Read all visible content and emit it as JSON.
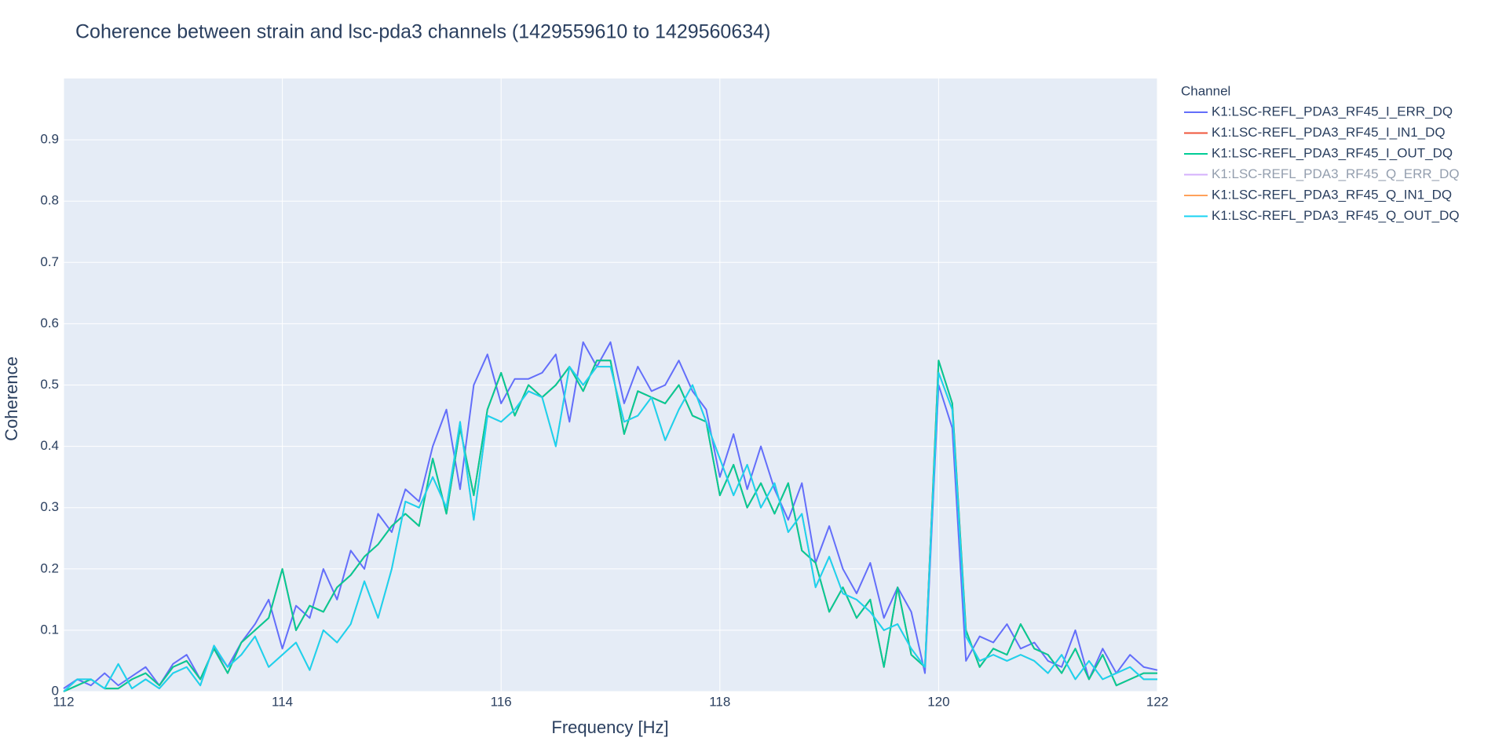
{
  "chart_data": {
    "type": "line",
    "title": "Coherence between strain and lsc-pda3 channels (1429559610 to 1429560634)",
    "x_label": "Frequency [Hz]",
    "y_label": "Coherence",
    "legend_title": "Channel",
    "legend_position": "outside-right",
    "grid": true,
    "background": "#e5ecf6",
    "xlim": [
      112,
      122
    ],
    "xticks": [
      112,
      114,
      116,
      118,
      120,
      122
    ],
    "ylim": [
      0,
      1
    ],
    "yticks": [
      0,
      0.1,
      0.2,
      0.3,
      0.4,
      0.5,
      0.6,
      0.7,
      0.8,
      0.9
    ],
    "x": [
      112,
      112.125,
      112.25,
      112.375,
      112.5,
      112.625,
      112.75,
      112.875,
      113,
      113.125,
      113.25,
      113.375,
      113.5,
      113.625,
      113.75,
      113.875,
      114,
      114.125,
      114.25,
      114.375,
      114.5,
      114.625,
      114.75,
      114.875,
      115,
      115.125,
      115.25,
      115.375,
      115.5,
      115.625,
      115.75,
      115.875,
      116,
      116.125,
      116.25,
      116.375,
      116.5,
      116.625,
      116.75,
      116.875,
      117,
      117.125,
      117.25,
      117.375,
      117.5,
      117.625,
      117.75,
      117.875,
      118,
      118.125,
      118.25,
      118.375,
      118.5,
      118.625,
      118.75,
      118.875,
      119,
      119.125,
      119.25,
      119.375,
      119.5,
      119.625,
      119.75,
      119.875,
      120,
      120.125,
      120.25,
      120.375,
      120.5,
      120.625,
      120.75,
      120.875,
      121,
      121.125,
      121.25,
      121.375,
      121.5,
      121.625,
      121.75,
      121.875,
      122
    ],
    "series": [
      {
        "name": "K1:LSC-REFL_PDA3_RF45_I_ERR_DQ",
        "color": "#636efa",
        "visible": true,
        "values": [
          0.005,
          0.02,
          0.01,
          0.03,
          0.01,
          0.025,
          0.04,
          0.01,
          0.045,
          0.06,
          0.02,
          0.07,
          0.04,
          0.08,
          0.11,
          0.15,
          0.07,
          0.14,
          0.12,
          0.2,
          0.15,
          0.23,
          0.2,
          0.29,
          0.26,
          0.33,
          0.31,
          0.4,
          0.46,
          0.33,
          0.5,
          0.55,
          0.47,
          0.51,
          0.51,
          0.52,
          0.55,
          0.44,
          0.57,
          0.53,
          0.57,
          0.47,
          0.53,
          0.49,
          0.5,
          0.54,
          0.49,
          0.46,
          0.35,
          0.42,
          0.33,
          0.4,
          0.33,
          0.28,
          0.34,
          0.21,
          0.27,
          0.2,
          0.16,
          0.21,
          0.12,
          0.17,
          0.13,
          0.03,
          0.5,
          0.43,
          0.05,
          0.09,
          0.08,
          0.11,
          0.07,
          0.08,
          0.05,
          0.04,
          0.1,
          0.02,
          0.07,
          0.03,
          0.06,
          0.04,
          0.035
        ]
      },
      {
        "name": "K1:LSC-REFL_PDA3_RF45_I_IN1_DQ",
        "color": "#ef553b",
        "visible": true,
        "values": [
          0,
          0.01,
          0.02,
          0.005,
          0.005,
          0.02,
          0.03,
          0.01,
          0.04,
          0.05,
          0.02,
          0.07,
          0.03,
          0.08,
          0.1,
          0.12,
          0.2,
          0.1,
          0.14,
          0.13,
          0.17,
          0.19,
          0.22,
          0.24,
          0.27,
          0.29,
          0.27,
          0.38,
          0.29,
          0.43,
          0.32,
          0.46,
          0.52,
          0.45,
          0.5,
          0.48,
          0.5,
          0.53,
          0.49,
          0.54,
          0.54,
          0.42,
          0.49,
          0.48,
          0.47,
          0.5,
          0.45,
          0.44,
          0.32,
          0.37,
          0.3,
          0.34,
          0.29,
          0.34,
          0.23,
          0.21,
          0.13,
          0.17,
          0.12,
          0.15,
          0.04,
          0.17,
          0.06,
          0.04,
          0.54,
          0.47,
          0.1,
          0.04,
          0.07,
          0.06,
          0.11,
          0.07,
          0.06,
          0.03,
          0.07,
          0.02,
          0.06,
          0.01,
          0.02,
          0.03,
          0.03
        ]
      },
      {
        "name": "K1:LSC-REFL_PDA3_RF45_I_OUT_DQ",
        "color": "#00cc96",
        "visible": true,
        "values": [
          0,
          0.01,
          0.02,
          0.005,
          0.005,
          0.02,
          0.03,
          0.01,
          0.04,
          0.05,
          0.02,
          0.07,
          0.03,
          0.08,
          0.1,
          0.12,
          0.2,
          0.1,
          0.14,
          0.13,
          0.17,
          0.19,
          0.22,
          0.24,
          0.27,
          0.29,
          0.27,
          0.38,
          0.29,
          0.43,
          0.32,
          0.46,
          0.52,
          0.45,
          0.5,
          0.48,
          0.5,
          0.53,
          0.49,
          0.54,
          0.54,
          0.42,
          0.49,
          0.48,
          0.47,
          0.5,
          0.45,
          0.44,
          0.32,
          0.37,
          0.3,
          0.34,
          0.29,
          0.34,
          0.23,
          0.21,
          0.13,
          0.17,
          0.12,
          0.15,
          0.04,
          0.17,
          0.06,
          0.04,
          0.54,
          0.47,
          0.1,
          0.04,
          0.07,
          0.06,
          0.11,
          0.07,
          0.06,
          0.03,
          0.07,
          0.02,
          0.06,
          0.01,
          0.02,
          0.03,
          0.03
        ]
      },
      {
        "name": "K1:LSC-REFL_PDA3_RF45_Q_ERR_DQ",
        "color": "#ab63fa",
        "visible": false
      },
      {
        "name": "K1:LSC-REFL_PDA3_RF45_Q_IN1_DQ",
        "color": "#ffa15a",
        "visible": true,
        "values": [
          0,
          0.02,
          0.02,
          0.005,
          0.045,
          0.005,
          0.02,
          0.005,
          0.03,
          0.04,
          0.01,
          0.075,
          0.04,
          0.06,
          0.09,
          0.04,
          0.06,
          0.08,
          0.035,
          0.1,
          0.08,
          0.11,
          0.18,
          0.12,
          0.2,
          0.31,
          0.3,
          0.35,
          0.3,
          0.44,
          0.28,
          0.45,
          0.44,
          0.46,
          0.49,
          0.48,
          0.4,
          0.53,
          0.5,
          0.53,
          0.53,
          0.44,
          0.45,
          0.48,
          0.41,
          0.46,
          0.5,
          0.44,
          0.38,
          0.32,
          0.37,
          0.3,
          0.34,
          0.26,
          0.29,
          0.17,
          0.22,
          0.16,
          0.15,
          0.13,
          0.1,
          0.11,
          0.07,
          0.04,
          0.52,
          0.46,
          0.09,
          0.05,
          0.06,
          0.05,
          0.06,
          0.05,
          0.03,
          0.06,
          0.02,
          0.05,
          0.02,
          0.03,
          0.04,
          0.02,
          0.02
        ]
      },
      {
        "name": "K1:LSC-REFL_PDA3_RF45_Q_OUT_DQ",
        "color": "#19d3f3",
        "visible": true,
        "values": [
          0,
          0.02,
          0.02,
          0.005,
          0.045,
          0.005,
          0.02,
          0.005,
          0.03,
          0.04,
          0.01,
          0.075,
          0.04,
          0.06,
          0.09,
          0.04,
          0.06,
          0.08,
          0.035,
          0.1,
          0.08,
          0.11,
          0.18,
          0.12,
          0.2,
          0.31,
          0.3,
          0.35,
          0.3,
          0.44,
          0.28,
          0.45,
          0.44,
          0.46,
          0.49,
          0.48,
          0.4,
          0.53,
          0.5,
          0.53,
          0.53,
          0.44,
          0.45,
          0.48,
          0.41,
          0.46,
          0.5,
          0.44,
          0.38,
          0.32,
          0.37,
          0.3,
          0.34,
          0.26,
          0.29,
          0.17,
          0.22,
          0.16,
          0.15,
          0.13,
          0.1,
          0.11,
          0.07,
          0.04,
          0.52,
          0.46,
          0.09,
          0.05,
          0.06,
          0.05,
          0.06,
          0.05,
          0.03,
          0.06,
          0.02,
          0.05,
          0.02,
          0.03,
          0.04,
          0.02,
          0.02
        ]
      }
    ]
  }
}
